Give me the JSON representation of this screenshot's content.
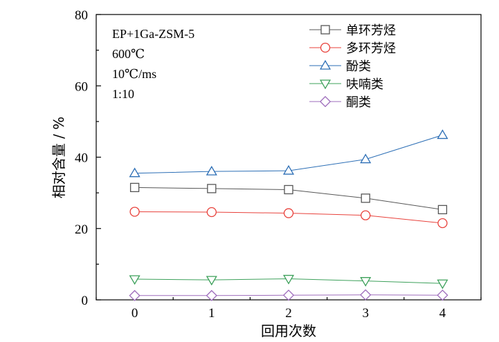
{
  "chart_data": {
    "type": "line",
    "title": "",
    "xlabel": "回用次数",
    "ylabel": "相对含量 / %",
    "x": [
      0,
      1,
      2,
      3,
      4
    ],
    "xlim": [
      -0.5,
      4.5
    ],
    "ylim": [
      0,
      80
    ],
    "xticks": [
      "0",
      "1",
      "2",
      "3",
      "4"
    ],
    "yticks": [
      "0",
      "20",
      "40",
      "60",
      "80"
    ],
    "grid": false,
    "legend_position": "top-right",
    "annotations": [
      "EP+1Ga-ZSM-5",
      "600℃",
      "10℃/ms",
      "1:10"
    ],
    "series": [
      {
        "name": "单环芳烃",
        "color": "#555555",
        "marker": "square",
        "values": [
          31.5,
          31.2,
          30.9,
          28.5,
          25.3
        ]
      },
      {
        "name": "多环芳烃",
        "color": "#e8403a",
        "marker": "circle",
        "values": [
          24.7,
          24.6,
          24.3,
          23.7,
          21.5
        ]
      },
      {
        "name": "酚类",
        "color": "#2a6db5",
        "marker": "triangle-up",
        "values": [
          35.5,
          36.0,
          36.2,
          39.4,
          46.2
        ]
      },
      {
        "name": "呋喃类",
        "color": "#3ca05a",
        "marker": "triangle-down",
        "values": [
          5.8,
          5.6,
          5.9,
          5.3,
          4.6
        ]
      },
      {
        "name": "酮类",
        "color": "#9d6bbb",
        "marker": "diamond",
        "values": [
          1.2,
          1.2,
          1.3,
          1.4,
          1.3
        ]
      }
    ]
  }
}
